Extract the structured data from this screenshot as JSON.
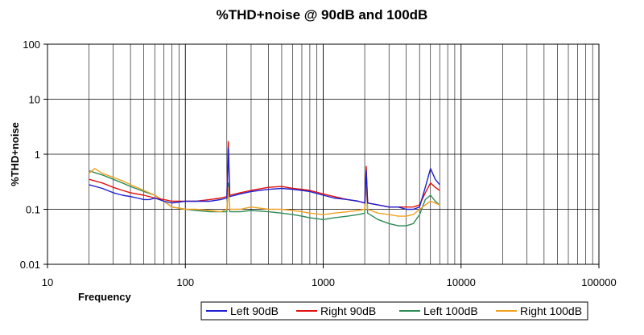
{
  "chart_data": {
    "type": "line",
    "title": "%THD+noise @ 90dB and 100dB",
    "xlabel": "Frequency",
    "ylabel": "%THD+noise",
    "x_scale": "log",
    "y_scale": "log",
    "xlim": [
      10,
      100000
    ],
    "ylim": [
      0.01,
      100
    ],
    "x_ticks": [
      "10",
      "100",
      "1000",
      "10000",
      "100000"
    ],
    "y_ticks": [
      "100",
      "10",
      "1",
      "0.1",
      "0.01"
    ],
    "grid": true,
    "legend_position": "bottom-right",
    "series": [
      {
        "name": "Left 90dB",
        "color": "#1f1fd0",
        "points": [
          [
            20,
            0.28
          ],
          [
            25,
            0.24
          ],
          [
            30,
            0.2
          ],
          [
            35,
            0.18
          ],
          [
            40,
            0.17
          ],
          [
            45,
            0.16
          ],
          [
            50,
            0.15
          ],
          [
            55,
            0.15
          ],
          [
            60,
            0.16
          ],
          [
            70,
            0.14
          ],
          [
            80,
            0.13
          ],
          [
            100,
            0.14
          ],
          [
            120,
            0.14
          ],
          [
            150,
            0.14
          ],
          [
            180,
            0.15
          ],
          [
            200,
            0.16
          ],
          [
            205,
            1.3
          ],
          [
            210,
            0.17
          ],
          [
            250,
            0.19
          ],
          [
            300,
            0.21
          ],
          [
            400,
            0.23
          ],
          [
            500,
            0.24
          ],
          [
            600,
            0.23
          ],
          [
            700,
            0.22
          ],
          [
            800,
            0.21
          ],
          [
            1000,
            0.18
          ],
          [
            1200,
            0.16
          ],
          [
            1500,
            0.15
          ],
          [
            1800,
            0.14
          ],
          [
            2000,
            0.13
          ],
          [
            2050,
            0.5
          ],
          [
            2100,
            0.13
          ],
          [
            2500,
            0.12
          ],
          [
            3000,
            0.11
          ],
          [
            3500,
            0.11
          ],
          [
            4000,
            0.1
          ],
          [
            4500,
            0.1
          ],
          [
            5000,
            0.11
          ],
          [
            5500,
            0.25
          ],
          [
            6000,
            0.55
          ],
          [
            6500,
            0.35
          ],
          [
            7000,
            0.28
          ]
        ]
      },
      {
        "name": "Right 90dB",
        "color": "#e01010",
        "points": [
          [
            20,
            0.35
          ],
          [
            25,
            0.3
          ],
          [
            30,
            0.25
          ],
          [
            35,
            0.22
          ],
          [
            40,
            0.2
          ],
          [
            50,
            0.18
          ],
          [
            60,
            0.16
          ],
          [
            70,
            0.15
          ],
          [
            80,
            0.14
          ],
          [
            100,
            0.14
          ],
          [
            120,
            0.14
          ],
          [
            150,
            0.15
          ],
          [
            180,
            0.16
          ],
          [
            200,
            0.17
          ],
          [
            205,
            1.7
          ],
          [
            210,
            0.18
          ],
          [
            250,
            0.2
          ],
          [
            300,
            0.22
          ],
          [
            400,
            0.25
          ],
          [
            500,
            0.26
          ],
          [
            600,
            0.24
          ],
          [
            700,
            0.23
          ],
          [
            800,
            0.22
          ],
          [
            1000,
            0.19
          ],
          [
            1200,
            0.17
          ],
          [
            1500,
            0.15
          ],
          [
            1800,
            0.14
          ],
          [
            2000,
            0.13
          ],
          [
            2050,
            0.6
          ],
          [
            2100,
            0.13
          ],
          [
            2500,
            0.12
          ],
          [
            3000,
            0.11
          ],
          [
            3500,
            0.11
          ],
          [
            4000,
            0.11
          ],
          [
            4500,
            0.11
          ],
          [
            5000,
            0.12
          ],
          [
            5500,
            0.2
          ],
          [
            6000,
            0.3
          ],
          [
            6500,
            0.25
          ],
          [
            7000,
            0.22
          ]
        ]
      },
      {
        "name": "Left 100dB",
        "color": "#2e8b57",
        "points": [
          [
            20,
            0.5
          ],
          [
            25,
            0.42
          ],
          [
            30,
            0.35
          ],
          [
            35,
            0.3
          ],
          [
            40,
            0.26
          ],
          [
            50,
            0.21
          ],
          [
            60,
            0.18
          ],
          [
            70,
            0.14
          ],
          [
            80,
            0.11
          ],
          [
            100,
            0.1
          ],
          [
            120,
            0.095
          ],
          [
            150,
            0.09
          ],
          [
            180,
            0.09
          ],
          [
            200,
            0.09
          ],
          [
            205,
            0.3
          ],
          [
            210,
            0.09
          ],
          [
            250,
            0.09
          ],
          [
            300,
            0.095
          ],
          [
            400,
            0.09
          ],
          [
            500,
            0.085
          ],
          [
            600,
            0.08
          ],
          [
            700,
            0.075
          ],
          [
            800,
            0.07
          ],
          [
            1000,
            0.065
          ],
          [
            1200,
            0.07
          ],
          [
            1500,
            0.075
          ],
          [
            1800,
            0.08
          ],
          [
            2000,
            0.085
          ],
          [
            2050,
            0.45
          ],
          [
            2100,
            0.085
          ],
          [
            2500,
            0.065
          ],
          [
            3000,
            0.055
          ],
          [
            3500,
            0.05
          ],
          [
            4000,
            0.05
          ],
          [
            4500,
            0.055
          ],
          [
            5000,
            0.08
          ],
          [
            5500,
            0.15
          ],
          [
            6000,
            0.18
          ],
          [
            6500,
            0.14
          ],
          [
            7000,
            0.12
          ]
        ]
      },
      {
        "name": "Right 100dB",
        "color": "#f0a020",
        "points": [
          [
            20,
            0.45
          ],
          [
            22,
            0.55
          ],
          [
            25,
            0.45
          ],
          [
            30,
            0.38
          ],
          [
            35,
            0.33
          ],
          [
            40,
            0.28
          ],
          [
            50,
            0.22
          ],
          [
            60,
            0.18
          ],
          [
            70,
            0.14
          ],
          [
            80,
            0.11
          ],
          [
            100,
            0.1
          ],
          [
            120,
            0.1
          ],
          [
            150,
            0.095
          ],
          [
            180,
            0.09
          ],
          [
            200,
            0.1
          ],
          [
            205,
            0.25
          ],
          [
            210,
            0.1
          ],
          [
            250,
            0.1
          ],
          [
            300,
            0.11
          ],
          [
            400,
            0.1
          ],
          [
            500,
            0.1
          ],
          [
            600,
            0.095
          ],
          [
            700,
            0.09
          ],
          [
            800,
            0.085
          ],
          [
            1000,
            0.08
          ],
          [
            1200,
            0.085
          ],
          [
            1500,
            0.09
          ],
          [
            1800,
            0.095
          ],
          [
            2000,
            0.1
          ],
          [
            2050,
            0.35
          ],
          [
            2100,
            0.1
          ],
          [
            2500,
            0.085
          ],
          [
            3000,
            0.08
          ],
          [
            3500,
            0.075
          ],
          [
            4000,
            0.075
          ],
          [
            4500,
            0.08
          ],
          [
            5000,
            0.1
          ],
          [
            5500,
            0.12
          ],
          [
            6000,
            0.14
          ],
          [
            6500,
            0.13
          ],
          [
            7000,
            0.12
          ]
        ]
      }
    ]
  }
}
